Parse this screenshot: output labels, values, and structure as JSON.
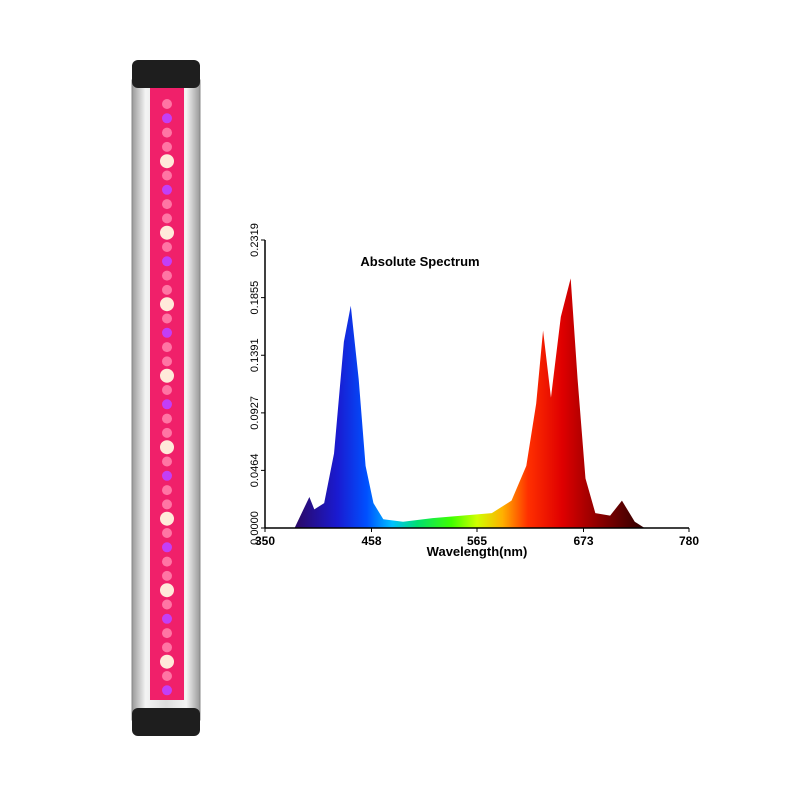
{
  "chart_data": {
    "type": "area",
    "title": "Absolute Spectrum",
    "x_label": "Wavelength(nm)",
    "x": [
      380,
      395,
      400,
      410,
      420,
      430,
      437,
      445,
      452,
      460,
      470,
      490,
      520,
      550,
      580,
      600,
      615,
      625,
      632,
      640,
      650,
      660,
      667,
      675,
      685,
      700,
      712,
      725,
      735
    ],
    "values": [
      0,
      0.025,
      0.015,
      0.02,
      0.06,
      0.15,
      0.179,
      0.12,
      0.05,
      0.02,
      0.007,
      0.005,
      0.008,
      0.01,
      0.012,
      0.022,
      0.05,
      0.1,
      0.159,
      0.105,
      0.17,
      0.201,
      0.12,
      0.04,
      0.012,
      0.01,
      0.022,
      0.005,
      0
    ],
    "xlim": [
      350,
      780
    ],
    "xticks": [
      350,
      458,
      565,
      673,
      780
    ],
    "ylim": [
      0,
      0.2319
    ],
    "yticks": [
      {
        "value": 0,
        "label": "0.0000"
      },
      0.0464,
      0.0927,
      0.1391,
      0.1855,
      0.2319
    ]
  }
}
